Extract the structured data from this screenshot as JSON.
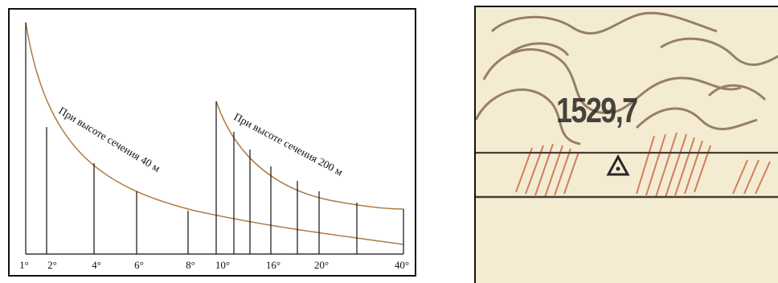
{
  "scale_diagram": {
    "tick_labels": [
      "1°",
      "2°",
      "4°",
      "6°",
      "8°",
      "10°",
      "16°",
      "20°",
      "40°"
    ],
    "curve_40_label": "При высоте сечения 40 м",
    "curve_200_label": "При высоте сечения 200 м",
    "colors": {
      "curve": "#b07a44",
      "lines": "#111111"
    }
  },
  "map_fragment": {
    "elevation_label": "1529,7",
    "colors": {
      "paper": "#f3ecd3",
      "contour": "#7a5a44",
      "hatching": "#c8643a",
      "line": "#4a3a30"
    }
  }
}
